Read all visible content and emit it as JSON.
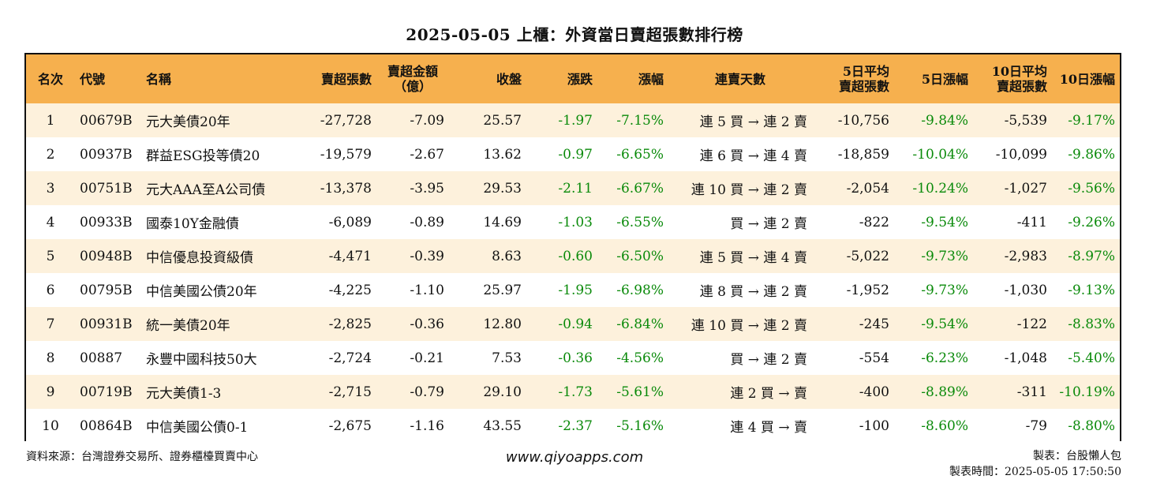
{
  "title": "2025-05-05 上櫃：外資當日賣超張數排行榜",
  "headers": {
    "rank": "名次",
    "code": "代號",
    "name": "名稱",
    "sell_lots": "賣超張數",
    "sell_amount": "賣超金額\n（億）",
    "close": "收盤",
    "change": "漲跌",
    "change_pct": "漲幅",
    "streak": "連賣天數",
    "avg5": "5日平均\n賣超張數",
    "pct5": "5日漲幅",
    "avg10": "10日平均\n賣超張數",
    "pct10": "10日漲幅"
  },
  "rows": [
    {
      "rank": "1",
      "code": "00679B",
      "name": "元大美債20年",
      "sell_lots": "-27,728",
      "sell_amount": "-7.09",
      "close": "25.57",
      "change": "-1.97",
      "change_pct": "-7.15%",
      "streak": "連 5 買 → 連 2 賣",
      "avg5": "-10,756",
      "pct5": "-9.84%",
      "avg10": "-5,539",
      "pct10": "-9.17%"
    },
    {
      "rank": "2",
      "code": "00937B",
      "name": "群益ESG投等債20",
      "sell_lots": "-19,579",
      "sell_amount": "-2.67",
      "close": "13.62",
      "change": "-0.97",
      "change_pct": "-6.65%",
      "streak": "連 6 買 → 連 4 賣",
      "avg5": "-18,859",
      "pct5": "-10.04%",
      "avg10": "-10,099",
      "pct10": "-9.86%"
    },
    {
      "rank": "3",
      "code": "00751B",
      "name": "元大AAA至A公司債",
      "sell_lots": "-13,378",
      "sell_amount": "-3.95",
      "close": "29.53",
      "change": "-2.11",
      "change_pct": "-6.67%",
      "streak": "連 10 買 → 連 2 賣",
      "avg5": "-2,054",
      "pct5": "-10.24%",
      "avg10": "-1,027",
      "pct10": "-9.56%"
    },
    {
      "rank": "4",
      "code": "00933B",
      "name": "國泰10Y金融債",
      "sell_lots": "-6,089",
      "sell_amount": "-0.89",
      "close": "14.69",
      "change": "-1.03",
      "change_pct": "-6.55%",
      "streak": "買 → 連 2 賣",
      "avg5": "-822",
      "pct5": "-9.54%",
      "avg10": "-411",
      "pct10": "-9.26%"
    },
    {
      "rank": "5",
      "code": "00948B",
      "name": "中信優息投資級債",
      "sell_lots": "-4,471",
      "sell_amount": "-0.39",
      "close": "8.63",
      "change": "-0.60",
      "change_pct": "-6.50%",
      "streak": "連 5 買 → 連 4 賣",
      "avg5": "-5,022",
      "pct5": "-9.73%",
      "avg10": "-2,983",
      "pct10": "-8.97%"
    },
    {
      "rank": "6",
      "code": "00795B",
      "name": "中信美國公債20年",
      "sell_lots": "-4,225",
      "sell_amount": "-1.10",
      "close": "25.97",
      "change": "-1.95",
      "change_pct": "-6.98%",
      "streak": "連 8 買 → 連 2 賣",
      "avg5": "-1,952",
      "pct5": "-9.73%",
      "avg10": "-1,030",
      "pct10": "-9.13%"
    },
    {
      "rank": "7",
      "code": "00931B",
      "name": "統一美債20年",
      "sell_lots": "-2,825",
      "sell_amount": "-0.36",
      "close": "12.80",
      "change": "-0.94",
      "change_pct": "-6.84%",
      "streak": "連 10 買 → 連 2 賣",
      "avg5": "-245",
      "pct5": "-9.54%",
      "avg10": "-122",
      "pct10": "-8.83%"
    },
    {
      "rank": "8",
      "code": "00887",
      "name": "永豐中國科技50大",
      "sell_lots": "-2,724",
      "sell_amount": "-0.21",
      "close": "7.53",
      "change": "-0.36",
      "change_pct": "-4.56%",
      "streak": "買 → 連 2 賣",
      "avg5": "-554",
      "pct5": "-6.23%",
      "avg10": "-1,048",
      "pct10": "-5.40%"
    },
    {
      "rank": "9",
      "code": "00719B",
      "name": "元大美債1-3",
      "sell_lots": "-2,715",
      "sell_amount": "-0.79",
      "close": "29.10",
      "change": "-1.73",
      "change_pct": "-5.61%",
      "streak": "連 2 買 → 賣",
      "avg5": "-400",
      "pct5": "-8.89%",
      "avg10": "-311",
      "pct10": "-10.19%"
    },
    {
      "rank": "10",
      "code": "00864B",
      "name": "中信美國公債0-1",
      "sell_lots": "-2,675",
      "sell_amount": "-1.16",
      "close": "43.55",
      "change": "-2.37",
      "change_pct": "-5.16%",
      "streak": "連 4 買 → 賣",
      "avg5": "-100",
      "pct5": "-8.60%",
      "avg10": "-79",
      "pct10": "-8.80%"
    }
  ],
  "footer": {
    "source": "資料來源：台灣證券交易所、證券櫃檯買賣中心",
    "website": "www.qiyoapps.com",
    "maker": "製表：台股懶人包",
    "made_time": "製表時間：2025-05-05 17:50:50"
  },
  "colors": {
    "header_bg": "#f6b04e",
    "stripe_bg": "#fdf1dc",
    "negative_green": "#0a8a0a"
  }
}
